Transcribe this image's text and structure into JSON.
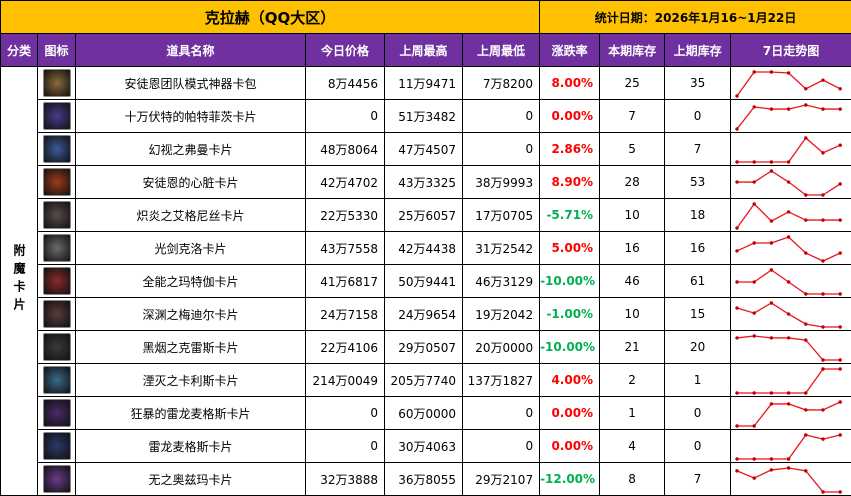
{
  "title": "克拉赫（QQ大区）",
  "date_label": "统计日期：2026年1月16~1月22日",
  "headers": [
    "分类",
    "图标",
    "道具名称",
    "今日价格",
    "上周最高",
    "上周最低",
    "涨跌率",
    "本期库存",
    "上期库存",
    "7日走势图"
  ],
  "category": "附魔卡片",
  "colors": {
    "title_bg": "#ffc000",
    "header_bg": "#7030a0",
    "up": "#ff0000",
    "down": "#00b050",
    "spark": "#e8141e"
  },
  "rows": [
    {
      "name": "安徒恩团队模式神器卡包",
      "today": "8万4456",
      "high": "11万9471",
      "low": "7万8200",
      "rate": "8.00%",
      "dir": "up",
      "cur": "25",
      "prev": "35",
      "icon": "#8a6a3a",
      "trend": [
        0,
        1,
        1,
        0.96,
        0.3,
        0.66,
        0.3
      ]
    },
    {
      "name": "十万伏特的帕特菲茨卡片",
      "today": "0",
      "high": "51万3482",
      "low": "0",
      "rate": "0.00%",
      "dir": "zero",
      "cur": "7",
      "prev": "0",
      "icon": "#4a3a8a",
      "trend": [
        0,
        0.92,
        0.83,
        0.83,
        1,
        0.83,
        0.83
      ]
    },
    {
      "name": "幻视之弗曼卡片",
      "today": "48万8064",
      "high": "47万4507",
      "low": "0",
      "rate": "2.86%",
      "dir": "up",
      "cur": "5",
      "prev": "7",
      "icon": "#3a5a9a",
      "trend": [
        0,
        0,
        0,
        0,
        1,
        0.38,
        0.7
      ]
    },
    {
      "name": "安徒恩的心脏卡片",
      "today": "42万4702",
      "high": "43万3325",
      "low": "38万9993",
      "rate": "8.90%",
      "dir": "up",
      "cur": "28",
      "prev": "53",
      "icon": "#a03a1a",
      "trend": [
        0.54,
        0.54,
        1,
        0.54,
        0,
        0,
        0.46
      ]
    },
    {
      "name": "炽炎之艾格尼丝卡片",
      "today": "22万5330",
      "high": "25万6057",
      "low": "17万0705",
      "rate": "-5.71%",
      "dir": "down",
      "cur": "10",
      "prev": "18",
      "icon": "#5a4a4a",
      "trend": [
        0,
        1,
        0.29,
        0.67,
        0.33,
        0.33,
        0.33
      ]
    },
    {
      "name": "光剑克洛卡片",
      "today": "43万7558",
      "high": "42万4438",
      "low": "31万2542",
      "rate": "5.00%",
      "dir": "up",
      "cur": "16",
      "prev": "16",
      "icon": "#6a6a6a",
      "trend": [
        0.42,
        0.75,
        0.75,
        1,
        0.33,
        0,
        0.33
      ]
    },
    {
      "name": "全能之玛特伽卡片",
      "today": "41万6817",
      "high": "50万9441",
      "low": "46万3129",
      "rate": "-10.00%",
      "dir": "down",
      "cur": "46",
      "prev": "61",
      "icon": "#8a2a2a",
      "trend": [
        0.5,
        0.5,
        1,
        0.5,
        0,
        0,
        0
      ]
    },
    {
      "name": "深渊之梅迪尔卡片",
      "today": "24万7158",
      "high": "24万9654",
      "low": "19万2042",
      "rate": "-1.00%",
      "dir": "down",
      "cur": "10",
      "prev": "15",
      "icon": "#5a3a3a",
      "trend": [
        0.79,
        0.58,
        1,
        0.54,
        0.12,
        0,
        0
      ]
    },
    {
      "name": "黑烟之克雷斯卡片",
      "today": "22万4106",
      "high": "29万0507",
      "low": "20万0000",
      "rate": "-10.00%",
      "dir": "down",
      "cur": "21",
      "prev": "20",
      "icon": "#3a3a3a",
      "trend": [
        0.92,
        1,
        0.92,
        0.92,
        0.83,
        0,
        0
      ]
    },
    {
      "name": "湮灭之卡利斯卡片",
      "today": "214万0049",
      "high": "205万7740",
      "low": "137万1827",
      "rate": "4.00%",
      "dir": "up",
      "cur": "2",
      "prev": "1",
      "icon": "#3a6a8a",
      "trend": [
        0,
        0,
        0,
        0,
        0,
        1,
        1
      ]
    },
    {
      "name": "狂暴的雷龙麦格斯卡片",
      "today": "0",
      "high": "60万0000",
      "low": "0",
      "rate": "0.00%",
      "dir": "zero",
      "cur": "1",
      "prev": "0",
      "icon": "#4a2a6a",
      "trend": [
        0,
        0,
        0.92,
        0.92,
        0.67,
        0.67,
        1
      ]
    },
    {
      "name": "雷龙麦格斯卡片",
      "today": "0",
      "high": "30万4063",
      "low": "0",
      "rate": "0.00%",
      "dir": "zero",
      "cur": "4",
      "prev": "0",
      "icon": "#2a3a6a",
      "trend": [
        0,
        0,
        0,
        0,
        1,
        0.83,
        1
      ]
    },
    {
      "name": "无之奥兹玛卡片",
      "today": "32万3888",
      "high": "36万8055",
      "low": "29万2107",
      "rate": "-12.00%",
      "dir": "down",
      "cur": "8",
      "prev": "7",
      "icon": "#6a3a8a",
      "trend": [
        0.88,
        0.58,
        0.92,
        1,
        0.88,
        0,
        0
      ]
    }
  ]
}
